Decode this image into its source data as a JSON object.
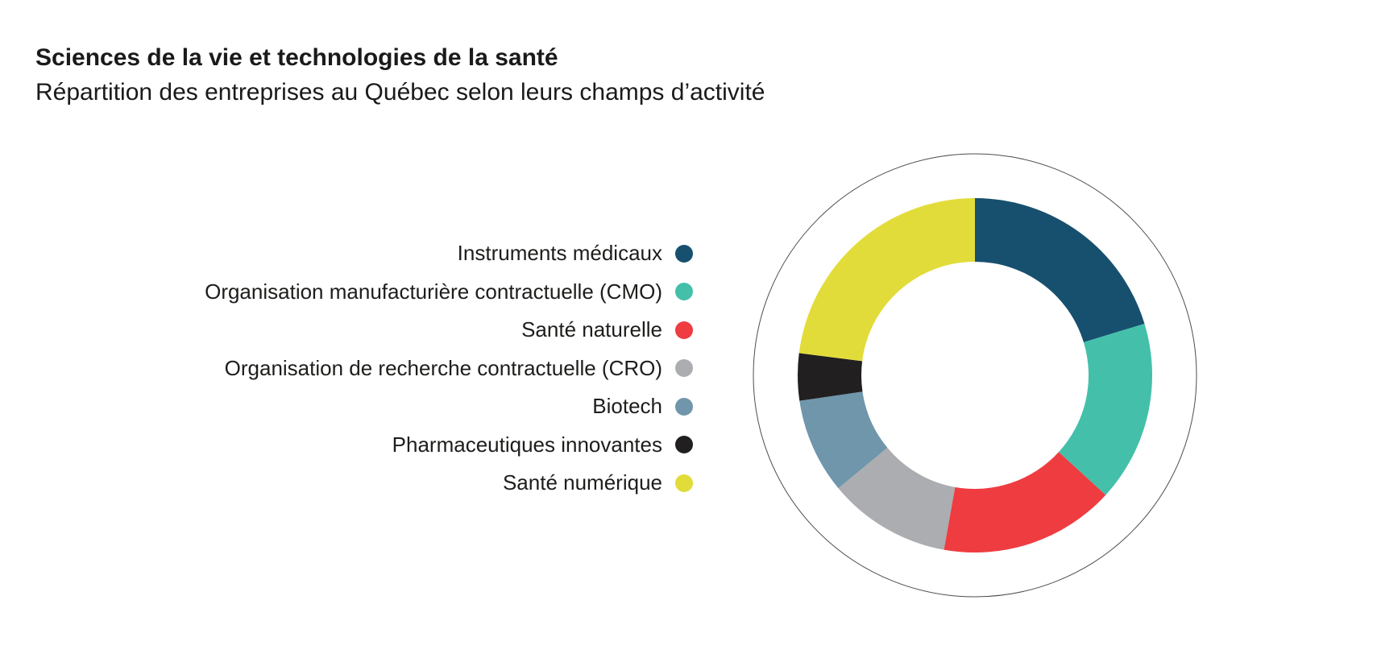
{
  "page": {
    "title": "Sciences de la vie et technologies de la santé",
    "subtitle": "Répartition des entreprises au Québec selon leurs champs d’activité"
  },
  "legend": {
    "items": [
      {
        "label": "Instruments médicaux",
        "color": "#17506E",
        "icon": "color-dot"
      },
      {
        "label": "Organisation manufacturière contractuelle (CMO)",
        "color": "#44C0AA",
        "icon": "color-dot"
      },
      {
        "label": "Santé naturelle",
        "color": "#EE3C40",
        "icon": "color-dot"
      },
      {
        "label": "Organisation de recherche contractuelle (CRO)",
        "color": "#ABADB0",
        "icon": "color-dot"
      },
      {
        "label": "Biotech",
        "color": "#6F96AB",
        "icon": "color-dot"
      },
      {
        "label": "Pharmaceutiques innovantes",
        "color": "#211F20",
        "icon": "color-dot"
      },
      {
        "label": "Santé numérique",
        "color": "#E2DC3A",
        "icon": "color-dot"
      }
    ]
  },
  "chart_data": {
    "type": "pie",
    "variant": "donut",
    "title": "Sciences de la vie et technologies de la santé",
    "subtitle": "Répartition des entreprises au Québec selon leurs champs d’activité",
    "categories": [
      "Instruments médicaux",
      "Organisation manufacturière contractuelle (CMO)",
      "Santé naturelle",
      "Organisation de recherche contractuelle (CRO)",
      "Biotech",
      "Pharmaceutiques innovantes",
      "Santé numérique"
    ],
    "values_percent": [
      20.3,
      16.5,
      16.0,
      11.2,
      8.7,
      4.3,
      23.0
    ],
    "colors": [
      "#17506E",
      "#44C0AA",
      "#EE3C40",
      "#ABADB0",
      "#6F96AB",
      "#211F20",
      "#E2DC3A"
    ],
    "start_angle_deg": 0,
    "direction": "clockwise",
    "inner_radius_ratio": 0.64,
    "data_labels_shown": false,
    "legend_position": "left",
    "outer_guide_circle": {
      "shown": true,
      "stroke_color": "#4d4d4d"
    }
  }
}
